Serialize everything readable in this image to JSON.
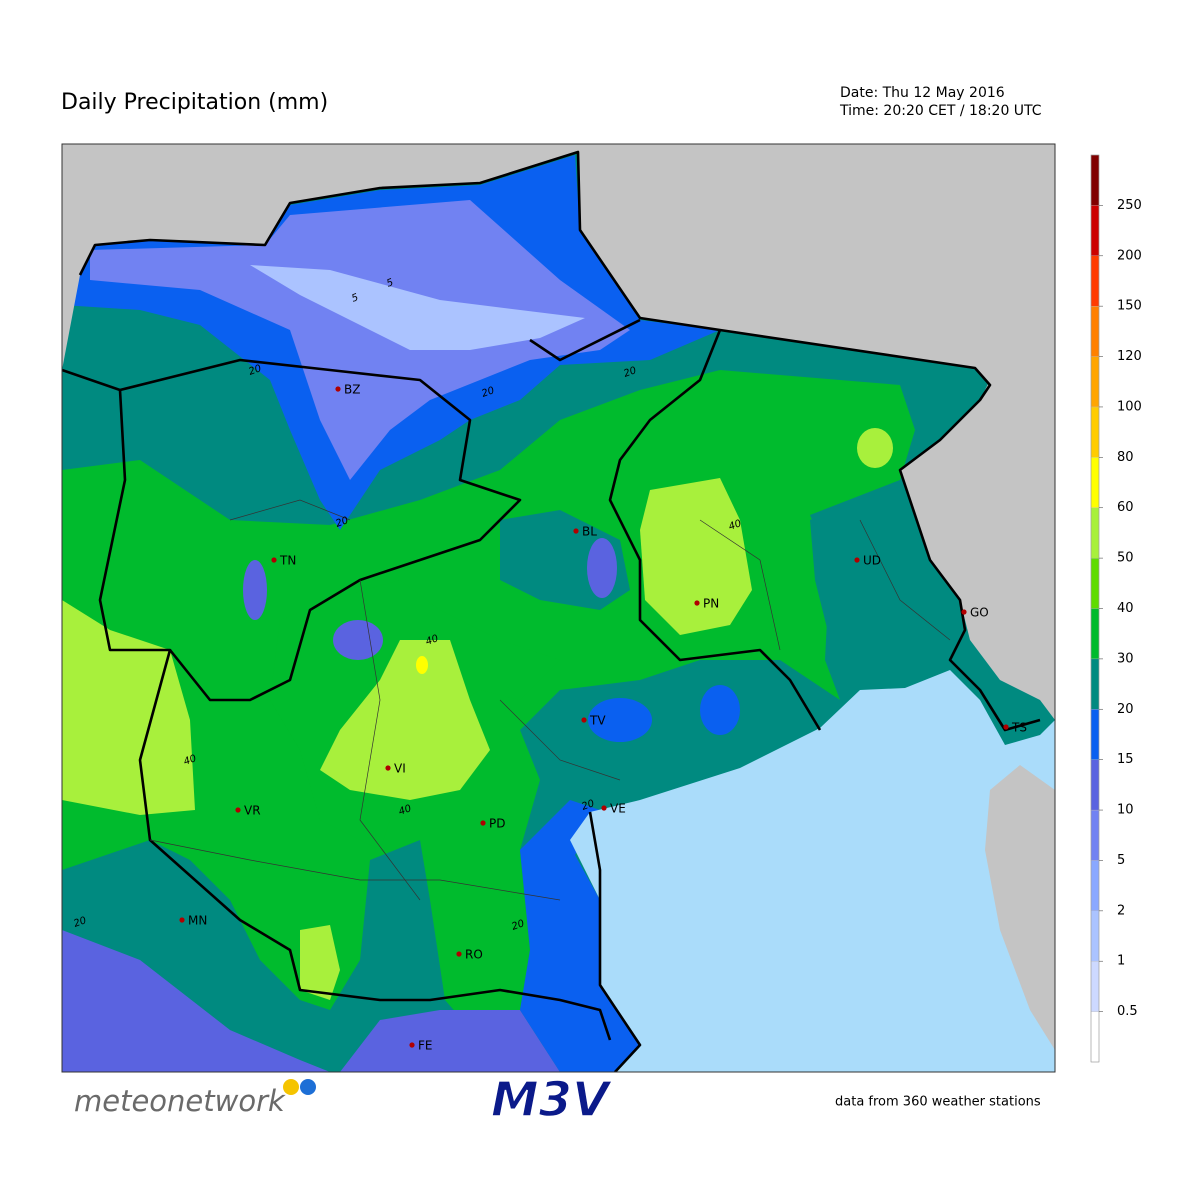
{
  "title": "Daily Precipitation (mm)",
  "date": "Date: Thu 12 May 2016",
  "time": "Time: 20:20 CET / 18:20 UTC",
  "colorbar": {
    "ticks": [
      0.5,
      1,
      2,
      5,
      10,
      15,
      20,
      30,
      40,
      50,
      60,
      80,
      100,
      120,
      150,
      200,
      250
    ],
    "colors": [
      "#ffffff",
      "#cdd9ff",
      "#abc3ff",
      "#8aa8ff",
      "#7182f2",
      "#5a63e0",
      "#0a60f0",
      "#008a80",
      "#00bb2d",
      "#5fdc00",
      "#a8f03c",
      "#ffff00",
      "#ffcc00",
      "#ffa500",
      "#ff8000",
      "#ff3c00",
      "#cc0000",
      "#800000"
    ]
  },
  "cities": [
    "BZ",
    "TN",
    "BL",
    "UD",
    "PN",
    "GO",
    "TV",
    "VI",
    "VR",
    "PD",
    "VE",
    "MN",
    "RO",
    "TS",
    "FE"
  ],
  "contour_labels": [
    "5",
    "5",
    "20",
    "20",
    "20",
    "20",
    "40",
    "40",
    "40",
    "40",
    "20",
    "20",
    "20"
  ],
  "footer": "data from 360 weather stations",
  "logos": {
    "left": "meteonetwork",
    "center": "M3V"
  }
}
